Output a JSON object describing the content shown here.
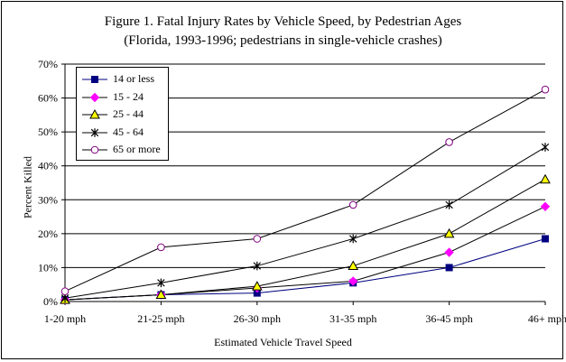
{
  "title": "Figure 1. Fatal Injury Rates by Vehicle Speed, by Pedestrian Ages",
  "subtitle": "(Florida, 1993-1996; pedestrians in single-vehicle crashes)",
  "chart_data": {
    "type": "line",
    "title": "Figure 1. Fatal Injury Rates by Vehicle Speed, by Pedestrian Ages",
    "subtitle": "(Florida, 1993-1996; pedestrians in single-vehicle crashes)",
    "xlabel": "Estimated Vehicle Travel Speed",
    "ylabel": "Percent Killed",
    "categories": [
      "1-20 mph",
      "21-25 mph",
      "26-30 mph",
      "31-35 mph",
      "36-45 mph",
      "46+ mph"
    ],
    "ylim": [
      0,
      70
    ],
    "yticks": [
      "0%",
      "10%",
      "20%",
      "30%",
      "40%",
      "50%",
      "60%",
      "70%"
    ],
    "grid": true,
    "legend": "top-left",
    "series": [
      {
        "name": "14 or less",
        "values": [
          0.5,
          2,
          2.5,
          5.5,
          10,
          18.5
        ],
        "color": "#000080",
        "marker": "square"
      },
      {
        "name": "15 - 24",
        "values": [
          0.5,
          2,
          4,
          6,
          14.5,
          28
        ],
        "color": "#ff00ff",
        "marker": "diamond"
      },
      {
        "name": "25 - 44",
        "values": [
          0.5,
          2,
          4.5,
          10.5,
          20,
          36
        ],
        "color": "#ffff00",
        "marker": "triangle"
      },
      {
        "name": "45 - 64",
        "values": [
          1,
          5.5,
          10.5,
          18.5,
          28.5,
          45.5
        ],
        "color": "#000000",
        "marker": "star"
      },
      {
        "name": "65 or more",
        "values": [
          3,
          16,
          18.5,
          28.5,
          47,
          62.5
        ],
        "color": "#800080",
        "marker": "circle"
      }
    ]
  }
}
